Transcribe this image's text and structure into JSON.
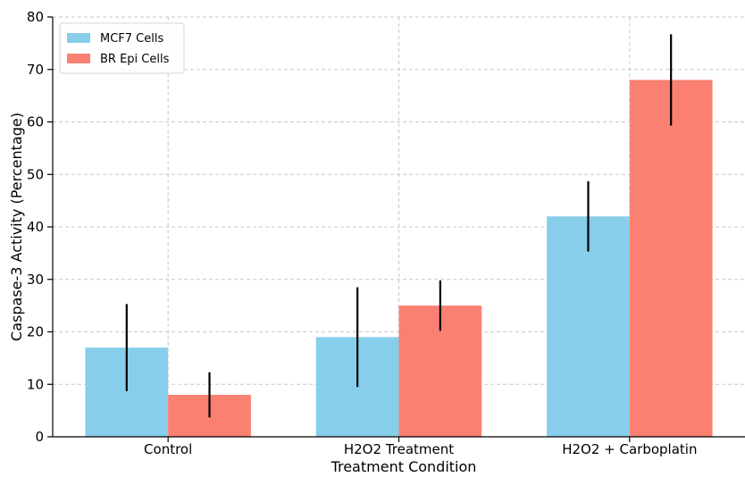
{
  "chart_data": {
    "type": "bar",
    "xlabel": "Treatment Condition",
    "ylabel": "Caspase-3 Activity (Percentage)",
    "categories": [
      "Control",
      "H2O2 Treatment",
      "H2O2 + Carboplatin"
    ],
    "ylim": [
      0,
      80
    ],
    "yticks": [
      0,
      10,
      20,
      30,
      40,
      50,
      60,
      70,
      80
    ],
    "grid": true,
    "legend": "top-left",
    "series": [
      {
        "name": "MCF7 Cells",
        "color": "#87ceeb",
        "values": [
          17,
          19,
          42
        ],
        "errors": [
          8.3,
          9.5,
          6.7
        ]
      },
      {
        "name": "BR Epi Cells",
        "color": "#fa8072",
        "values": [
          8,
          25,
          68
        ],
        "errors": [
          4.3,
          4.8,
          8.7
        ]
      }
    ]
  }
}
